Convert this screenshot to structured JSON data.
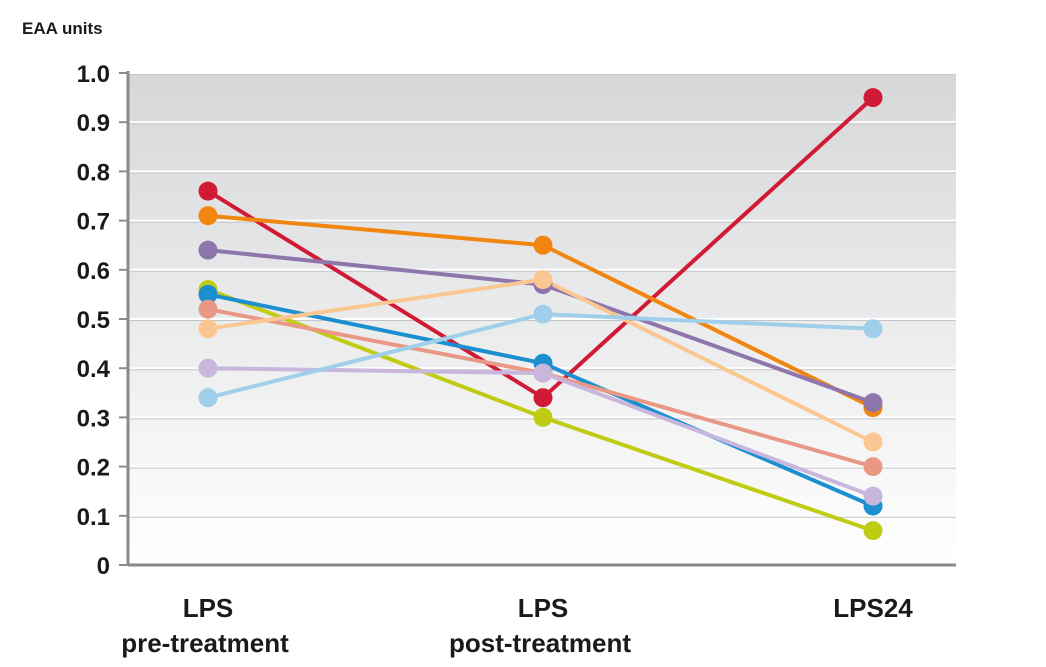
{
  "chart_data": {
    "type": "line",
    "ylabel": "EAA units",
    "xlabel": "",
    "ylim": [
      0,
      1.0
    ],
    "yticks": [
      "0",
      "0.1",
      "0.2",
      "0.3",
      "0.4",
      "0.5",
      "0.6",
      "0.7",
      "0.8",
      "0.9",
      "1.0"
    ],
    "categories": [
      {
        "line1": "LPS",
        "line2": "pre-treatment"
      },
      {
        "line1": "LPS",
        "line2": "post-treatment"
      },
      {
        "line1": "LPS24",
        "line2": ""
      }
    ],
    "grid": true,
    "background": "vertical gradient, grey top to white bottom",
    "series": [
      {
        "color": "#d11a35",
        "values": [
          0.76,
          0.34,
          0.95
        ]
      },
      {
        "color": "#f0860f",
        "values": [
          0.71,
          0.65,
          0.32
        ]
      },
      {
        "color": "#8e76ad",
        "values": [
          0.64,
          0.57,
          0.33
        ]
      },
      {
        "color": "#c0cc14",
        "values": [
          0.56,
          0.3,
          0.07
        ]
      },
      {
        "color": "#1b8fcf",
        "values": [
          0.55,
          0.41,
          0.12
        ]
      },
      {
        "color": "#ea9886",
        "values": [
          0.52,
          0.39,
          0.2
        ]
      },
      {
        "color": "#fac792",
        "values": [
          0.48,
          0.58,
          0.25
        ]
      },
      {
        "color": "#c8b6dc",
        "values": [
          0.4,
          0.39,
          0.14
        ]
      },
      {
        "color": "#9fcfea",
        "values": [
          0.34,
          0.51,
          0.48
        ]
      }
    ]
  }
}
